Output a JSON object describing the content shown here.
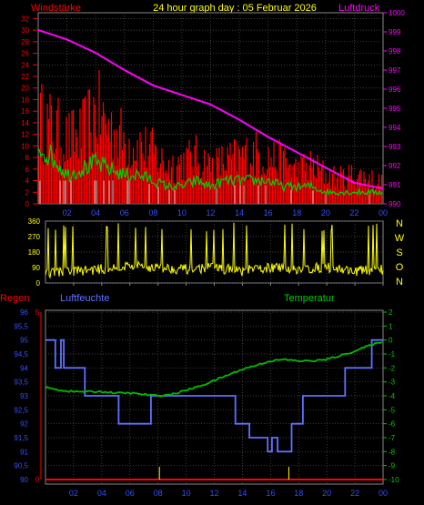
{
  "header": {
    "left_label": "Windstärke",
    "title": "24 hour graph day : 05 Februar 2026",
    "right_label": "Luftdruck"
  },
  "compass": [
    "N",
    "W",
    "S",
    "O",
    "N"
  ],
  "lower_labels": {
    "regen": "Regen",
    "luftfeuchte": "Luftfeuchte",
    "temperatur": "Temperatur"
  },
  "colors": {
    "wind_bars": "#ff0000",
    "gust_bars": "#c8c8c8",
    "wind_avg": "#00cc00",
    "pressure": "#ff00ff",
    "direction": "#ffff00",
    "humidity": "#6070ff",
    "temperature": "#00bb00",
    "rain": "#ff0000",
    "axis_blue": "#3050ff",
    "grid": "#555555"
  },
  "chart_data": [
    {
      "type": "line",
      "title": "24 hour graph day : 05 Februar 2026",
      "x_ticks": [
        "02",
        "04",
        "06",
        "08",
        "10",
        "12",
        "14",
        "16",
        "18",
        "20",
        "22",
        "00"
      ],
      "xlim": [
        0,
        24
      ],
      "y_left_label": "Windstärke",
      "y_left_ticks": [
        0,
        2,
        4,
        6,
        8,
        10,
        12,
        14,
        16,
        18,
        20,
        22,
        24,
        26,
        28,
        30,
        32
      ],
      "ylim_left": [
        0,
        33
      ],
      "y_right_label": "Luftdruck",
      "y_right_ticks": [
        990,
        991,
        992,
        993,
        994,
        995,
        996,
        997,
        998,
        999,
        1000
      ],
      "ylim_right": [
        990,
        1000
      ],
      "series": [
        {
          "name": "Windstärke",
          "axis": "left",
          "x": [
            0,
            1,
            2,
            3,
            4,
            5,
            6,
            7,
            8,
            9,
            10,
            11,
            12,
            13,
            14,
            15,
            16,
            17,
            18,
            19,
            20,
            21,
            22,
            23,
            24
          ],
          "values": [
            20,
            18,
            15,
            16,
            22,
            18,
            15,
            14,
            12,
            9,
            10,
            11,
            9,
            10,
            11,
            12,
            11,
            10,
            8,
            9,
            7,
            6,
            7,
            6,
            5
          ]
        },
        {
          "name": "Windmittel",
          "axis": "left",
          "x": [
            0,
            1,
            2,
            3,
            4,
            5,
            6,
            7,
            8,
            9,
            10,
            11,
            12,
            13,
            14,
            15,
            16,
            17,
            18,
            19,
            20,
            21,
            22,
            23,
            24
          ],
          "values": [
            10,
            8,
            5,
            6,
            7,
            6,
            5,
            5,
            4,
            3,
            3,
            4,
            3,
            4,
            4,
            4,
            4,
            3,
            3,
            3,
            2,
            2,
            2,
            2,
            2
          ]
        },
        {
          "name": "Luftdruck",
          "axis": "right",
          "x": [
            0,
            2,
            4,
            6,
            8,
            10,
            12,
            14,
            16,
            18,
            20,
            22,
            24
          ],
          "values": [
            999.1,
            998.6,
            997.9,
            997.0,
            996.2,
            995.7,
            995.2,
            994.4,
            993.5,
            992.7,
            991.9,
            991.1,
            990.8
          ]
        }
      ]
    },
    {
      "type": "line",
      "x_ticks": [
        "02",
        "04",
        "06",
        "08",
        "10",
        "12",
        "14",
        "16",
        "18",
        "20",
        "22",
        "00"
      ],
      "xlim": [
        0,
        24
      ],
      "y_ticks": [
        0,
        90,
        180,
        270,
        360
      ],
      "ylim": [
        0,
        360
      ],
      "series": [
        {
          "name": "Windrichtung",
          "x": [
            0,
            2,
            4,
            6,
            8,
            10,
            12,
            14,
            16,
            18,
            20,
            22,
            24
          ],
          "values": [
            60,
            70,
            80,
            100,
            90,
            80,
            90,
            70,
            90,
            80,
            90,
            70,
            80
          ]
        }
      ]
    },
    {
      "type": "line",
      "x_ticks": [
        "02",
        "04",
        "06",
        "08",
        "10",
        "12",
        "14",
        "16",
        "18",
        "20",
        "22",
        "00"
      ],
      "xlim": [
        0,
        24
      ],
      "y_left_label": "Regen",
      "y_rain_ticks": [
        0,
        5
      ],
      "ylim_rain": [
        0,
        5
      ],
      "y_humidity_label": "Luftfeuchte",
      "y_humidity_ticks": [
        90,
        90.5,
        91,
        91.5,
        92,
        92.5,
        93,
        93.5,
        94,
        94.5,
        95,
        95.5,
        96
      ],
      "ylim_humidity": [
        90,
        96
      ],
      "y_right_label": "Temperatur",
      "y_temp_ticks": [
        -10,
        -9,
        -8,
        -7,
        -6,
        -5,
        -4,
        -3,
        -2,
        -1,
        0,
        1,
        2
      ],
      "ylim_temp": [
        -10,
        2
      ],
      "rain_markers_x": [
        8.1,
        17.3
      ],
      "series": [
        {
          "name": "Luftfeuchte",
          "x": [
            0,
            0.7,
            0.7,
            1.1,
            1.1,
            1.3,
            1.3,
            1.6,
            1.6,
            2.8,
            2.8,
            5.2,
            5.2,
            7.5,
            7.5,
            8.6,
            8.6,
            13.5,
            13.5,
            14.5,
            14.5,
            15.8,
            15.8,
            16.1,
            16.1,
            16.5,
            16.5,
            17.5,
            17.5,
            18.3,
            18.3,
            21.3,
            21.3,
            23.2,
            23.2,
            24
          ],
          "values": [
            95,
            95,
            94,
            94,
            95,
            95,
            94,
            94,
            94,
            94,
            93,
            93,
            92,
            92,
            93,
            93,
            93,
            93,
            92,
            92,
            91.5,
            91.5,
            91,
            91,
            91.5,
            91.5,
            91,
            91,
            92,
            92,
            93,
            93,
            94,
            94,
            95,
            95
          ]
        },
        {
          "name": "Temperatur",
          "x": [
            0,
            1,
            2,
            3,
            4,
            5,
            6,
            7,
            8,
            9,
            10,
            11,
            12,
            13,
            14,
            15,
            16,
            17,
            18,
            19,
            20,
            21,
            22,
            23,
            24
          ],
          "values": [
            -3.4,
            -3.6,
            -3.7,
            -3.7,
            -3.7,
            -3.8,
            -3.8,
            -3.9,
            -4.0,
            -3.9,
            -3.6,
            -3.3,
            -2.9,
            -2.5,
            -2.1,
            -1.8,
            -1.5,
            -1.4,
            -1.5,
            -1.5,
            -1.4,
            -1.1,
            -0.8,
            -0.4,
            -0.1
          ]
        },
        {
          "name": "Regen",
          "x": [
            0,
            24
          ],
          "values": [
            0,
            0
          ]
        }
      ]
    }
  ]
}
